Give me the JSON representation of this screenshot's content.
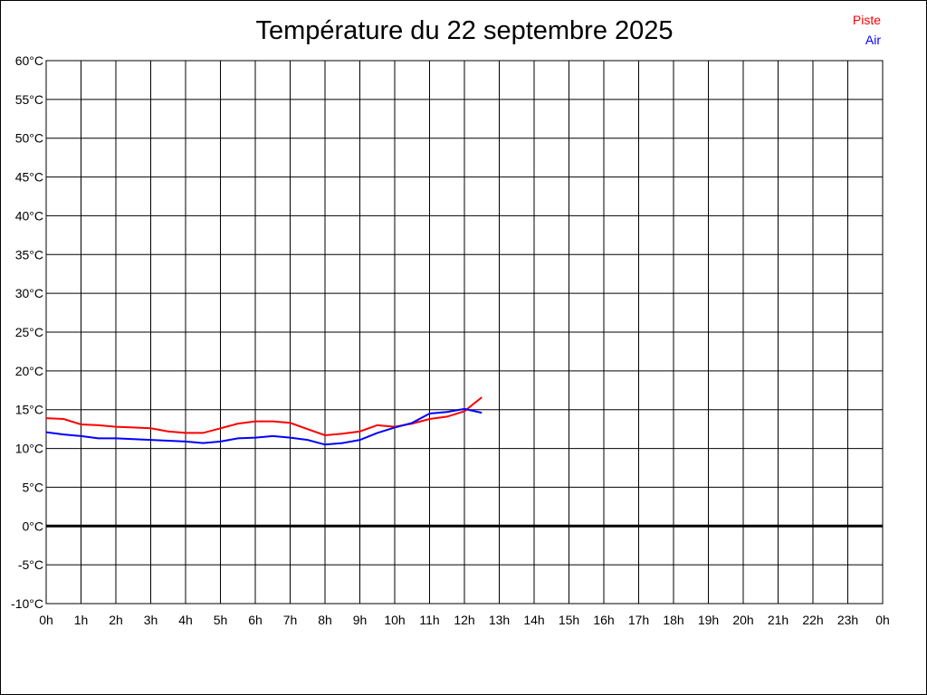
{
  "chart_data": {
    "type": "line",
    "title": "Température du 22 septembre 2025",
    "x_ticks": [
      "0h",
      "1h",
      "2h",
      "3h",
      "4h",
      "5h",
      "6h",
      "7h",
      "8h",
      "9h",
      "10h",
      "11h",
      "12h",
      "13h",
      "14h",
      "15h",
      "16h",
      "17h",
      "18h",
      "19h",
      "20h",
      "21h",
      "22h",
      "23h",
      "0h"
    ],
    "y_ticks": [
      "60°C",
      "55°C",
      "50°C",
      "45°C",
      "40°C",
      "35°C",
      "30°C",
      "25°C",
      "20°C",
      "15°C",
      "10°C",
      "5°C",
      "0°C",
      "-5°C",
      "-10°C"
    ],
    "xlim": [
      0,
      24
    ],
    "ylim": [
      -10,
      60
    ],
    "grid": true,
    "legend_position": "top-right",
    "x": [
      0,
      0.5,
      1,
      1.5,
      2,
      2.5,
      3,
      3.5,
      4,
      4.5,
      5,
      5.5,
      6,
      6.5,
      7,
      7.5,
      8,
      8.5,
      9,
      9.5,
      10,
      10.5,
      11,
      11.5,
      12,
      12.5
    ],
    "series": [
      {
        "name": "Piste",
        "color": "#ff0000",
        "values": [
          13.9,
          13.8,
          13.1,
          13.0,
          12.8,
          12.7,
          12.6,
          12.2,
          12.0,
          12.0,
          12.6,
          13.2,
          13.5,
          13.5,
          13.3,
          12.5,
          11.7,
          11.9,
          12.2,
          13.0,
          12.8,
          13.2,
          13.8,
          14.1,
          14.8,
          16.6
        ]
      },
      {
        "name": "Air",
        "color": "#0000ff",
        "values": [
          12.1,
          11.8,
          11.6,
          11.3,
          11.3,
          11.2,
          11.1,
          11.0,
          10.9,
          10.7,
          10.9,
          11.3,
          11.4,
          11.6,
          11.4,
          11.1,
          10.5,
          10.7,
          11.1,
          12.0,
          12.7,
          13.3,
          14.5,
          14.7,
          15.1,
          14.6
        ]
      }
    ]
  }
}
